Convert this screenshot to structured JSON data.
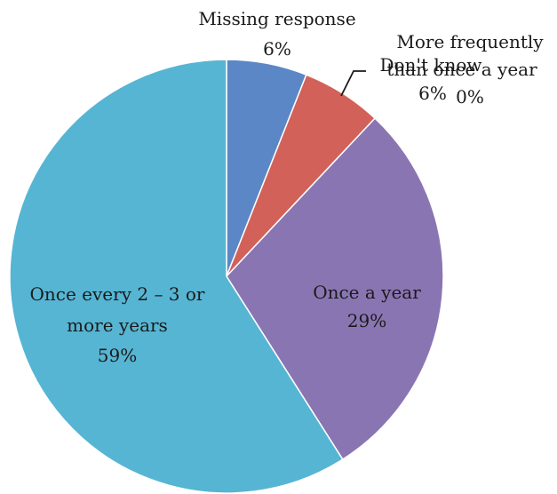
{
  "chart_data": {
    "type": "pie",
    "title": "",
    "start_angle_deg": 0,
    "direction": "clockwise",
    "slices": [
      {
        "name": "Missing response",
        "value": 6,
        "value_label": "6%",
        "color": "#5b87c6"
      },
      {
        "name": "Don't know",
        "value": 6,
        "value_label": "6%",
        "color": "#d2615a"
      },
      {
        "name_lines": [
          "More frequently",
          "than once a year"
        ],
        "value": 0,
        "value_label": "0%",
        "color": "#98b956"
      },
      {
        "name": "Once a year",
        "value": 29,
        "value_label": "29%",
        "color": "#8a75b3"
      },
      {
        "name_lines": [
          "Once every 2 – 3 or",
          "more years"
        ],
        "value": 59,
        "value_label": "59%",
        "color": "#56b5d3"
      }
    ]
  }
}
